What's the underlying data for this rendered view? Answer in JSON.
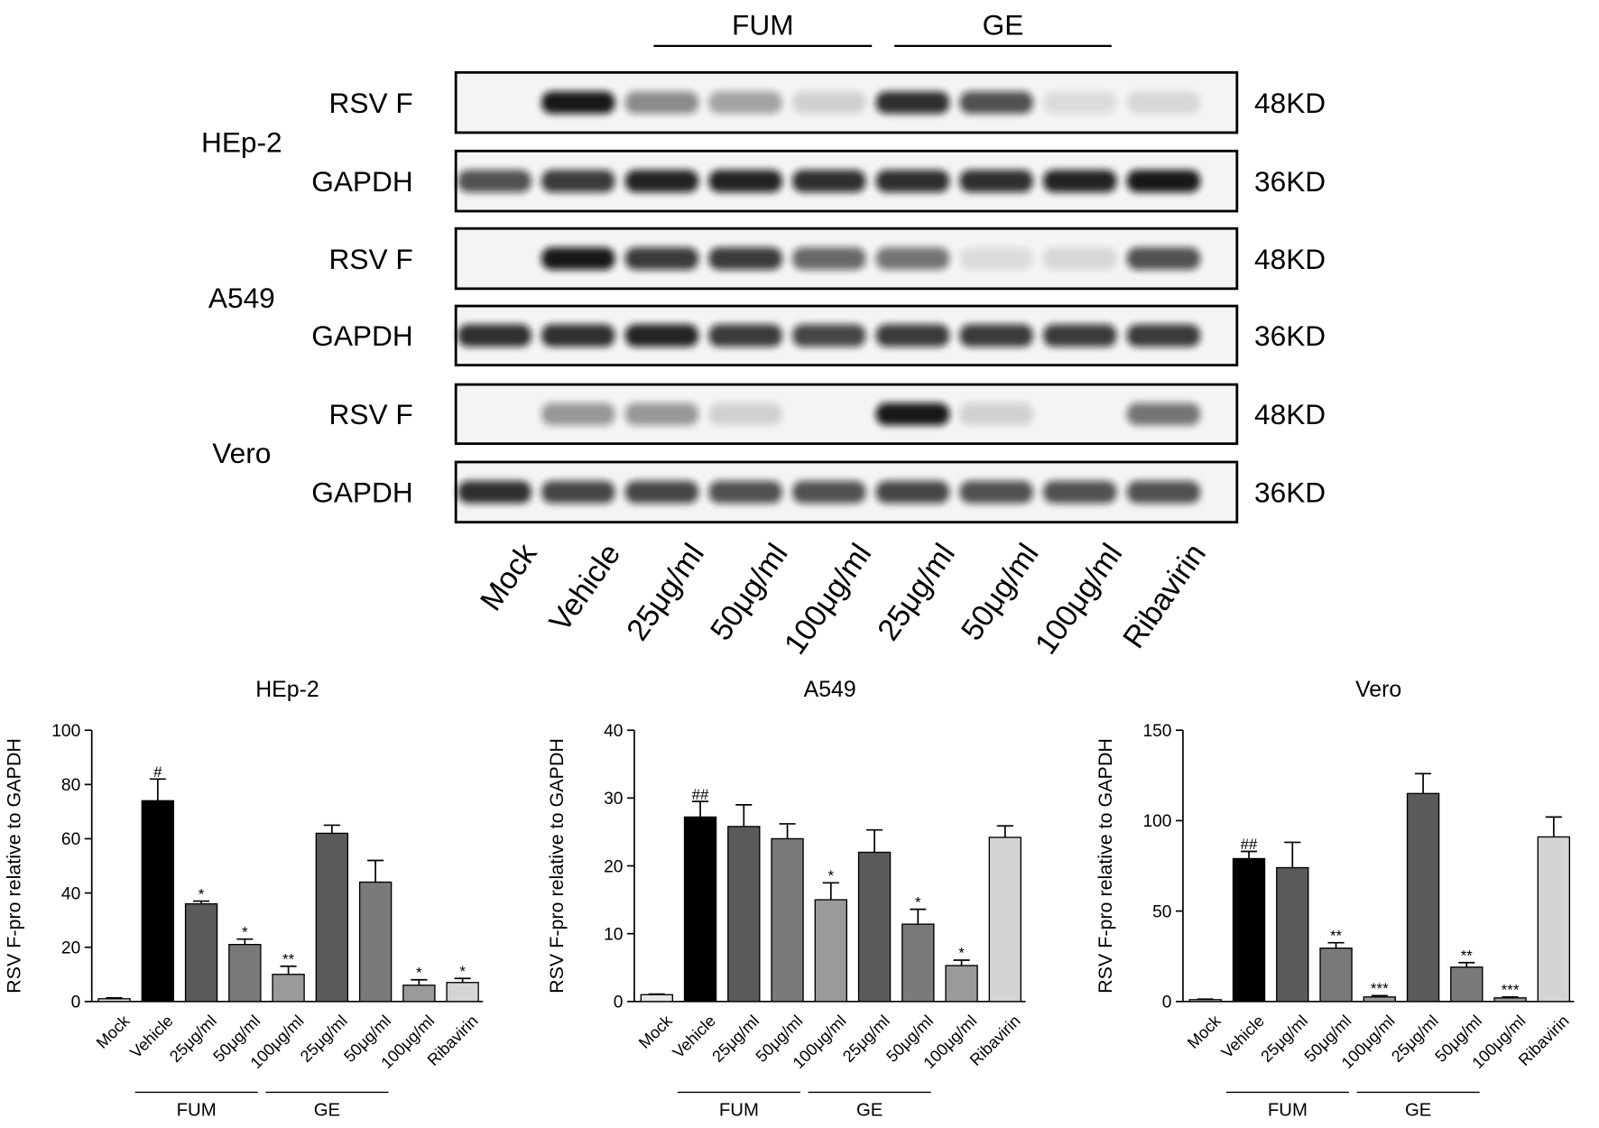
{
  "blot": {
    "group_labels": [
      "FUM",
      "GE"
    ],
    "cell_lines": [
      {
        "name": "HEp-2",
        "rows": [
          {
            "protein": "RSV F",
            "size": "48KD"
          },
          {
            "protein": "GAPDH",
            "size": "36KD"
          }
        ]
      },
      {
        "name": "A549",
        "rows": [
          {
            "protein": "RSV F",
            "size": "48KD"
          },
          {
            "protein": "GAPDH",
            "size": "36KD"
          }
        ]
      },
      {
        "name": "Vero",
        "rows": [
          {
            "protein": "RSV F",
            "size": "48KD"
          },
          {
            "protein": "GAPDH",
            "size": "36KD"
          }
        ]
      }
    ],
    "lanes": [
      "Mock",
      "Vehicle",
      "25μg/ml",
      "50μg/ml",
      "100μg/ml",
      "25μg/ml",
      "50μg/ml",
      "100μg/ml",
      "Ribavirin"
    ]
  },
  "chart_data": [
    {
      "type": "bar",
      "title": "HEp-2",
      "y_label": "RSV F-pro relative to GAPDH",
      "categories": [
        "Mock",
        "Vehicle",
        "25μg/ml",
        "50μg/ml",
        "100μg/ml",
        "25μg/ml",
        "50μg/ml",
        "100μg/ml",
        "Ribavirin"
      ],
      "category_groups": [
        null,
        null,
        "FUM",
        "FUM",
        "FUM",
        "GE",
        "GE",
        "GE",
        null
      ],
      "values": [
        1,
        74,
        36,
        21,
        10,
        62,
        44,
        6,
        7
      ],
      "errors": [
        0.3,
        8,
        1,
        2,
        3,
        3,
        8,
        2,
        1.5
      ],
      "annotations": [
        null,
        "#",
        "*",
        "*",
        "**",
        null,
        null,
        "*",
        "*"
      ],
      "colors": [
        "#e6e6e6",
        "#000000",
        "#5a5a5a",
        "#7a7a7a",
        "#9a9a9a",
        "#5a5a5a",
        "#7a7a7a",
        "#9a9a9a",
        "#d4d4d4"
      ],
      "ylim": [
        0,
        100
      ],
      "yticks": [
        0,
        20,
        40,
        60,
        80,
        100
      ]
    },
    {
      "type": "bar",
      "title": "A549",
      "y_label": "RSV F-pro relative to GAPDH",
      "categories": [
        "Mock",
        "Vehicle",
        "25μg/ml",
        "50μg/ml",
        "100μg/ml",
        "25μg/ml",
        "50μg/ml",
        "100μg/ml",
        "Ribavirin"
      ],
      "category_groups": [
        null,
        null,
        "FUM",
        "FUM",
        "FUM",
        "GE",
        "GE",
        "GE",
        null
      ],
      "values": [
        1,
        27.2,
        25.8,
        24,
        15,
        22,
        11.4,
        5.3,
        24.2
      ],
      "errors": [
        0.1,
        2.3,
        3.2,
        2.2,
        2.5,
        3.3,
        2.2,
        0.8,
        1.7
      ],
      "annotations": [
        null,
        "##",
        null,
        null,
        "*",
        null,
        "*",
        "*",
        null
      ],
      "colors": [
        "#e6e6e6",
        "#000000",
        "#5a5a5a",
        "#7a7a7a",
        "#9a9a9a",
        "#5a5a5a",
        "#7a7a7a",
        "#9a9a9a",
        "#d4d4d4"
      ],
      "ylim": [
        0,
        40
      ],
      "yticks": [
        0,
        10,
        20,
        30,
        40
      ]
    },
    {
      "type": "bar",
      "title": "Vero",
      "y_label": "RSV F-pro relative to GAPDH",
      "categories": [
        "Mock",
        "Vehicle",
        "25μg/ml",
        "50μg/ml",
        "100μg/ml",
        "25μg/ml",
        "50μg/ml",
        "100μg/ml",
        "Ribavirin"
      ],
      "category_groups": [
        null,
        null,
        "FUM",
        "FUM",
        "FUM",
        "GE",
        "GE",
        "GE",
        null
      ],
      "values": [
        1,
        79,
        74,
        29.5,
        2.5,
        115,
        19,
        2,
        91
      ],
      "errors": [
        0.3,
        4,
        14,
        3,
        0.7,
        11,
        2.5,
        0.5,
        11
      ],
      "annotations": [
        null,
        "##",
        null,
        "**",
        "***",
        null,
        "**",
        "***",
        null
      ],
      "colors": [
        "#e6e6e6",
        "#000000",
        "#5a5a5a",
        "#7a7a7a",
        "#9a9a9a",
        "#5a5a5a",
        "#7a7a7a",
        "#9a9a9a",
        "#d4d4d4"
      ],
      "ylim": [
        0,
        150
      ],
      "yticks": [
        0,
        50,
        100,
        150
      ]
    }
  ]
}
